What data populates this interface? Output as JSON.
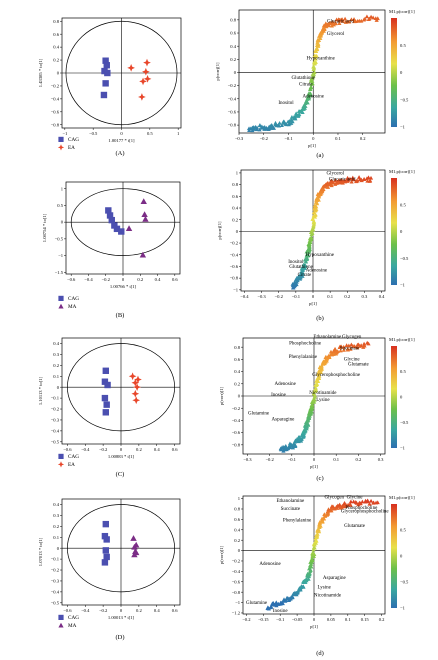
{
  "chart_data": [
    {
      "type": "scatter",
      "kind": "scores",
      "label": "(A)",
      "xlabel": "1.00177 * t[1]",
      "ylabel": "1.43385 * to[1]",
      "xticks": [
        -1,
        -0.5,
        0,
        0.5,
        1
      ],
      "yticks": [
        0.8,
        0.6,
        0.4,
        0.2,
        0,
        -0.2,
        -0.4,
        -0.6,
        -0.8
      ],
      "xlim": [
        -1.05,
        1.05
      ],
      "ylim": [
        -0.85,
        0.85
      ],
      "ellipse": {
        "rx": 0.98,
        "ry": 0.8
      },
      "series": [
        {
          "name": "CAG",
          "marker": "square",
          "color": "#4b4fb0",
          "points": [
            [
              -0.28,
              0.19
            ],
            [
              -0.26,
              0.12
            ],
            [
              -0.3,
              0.03
            ],
            [
              -0.25,
              0.0
            ],
            [
              -0.28,
              -0.16
            ],
            [
              -0.31,
              -0.34
            ]
          ]
        },
        {
          "name": "EA",
          "marker": "cross4",
          "color": "#e8462a",
          "points": [
            [
              0.17,
              0.08
            ],
            [
              0.45,
              0.16
            ],
            [
              0.43,
              0.02
            ],
            [
              0.46,
              -0.09
            ],
            [
              0.38,
              -0.13
            ],
            [
              0.36,
              -0.37
            ]
          ]
        }
      ]
    },
    {
      "type": "scatter",
      "kind": "splot",
      "label": "(a)",
      "xlabel": "p[1]",
      "ylabel": "p(corr)[1]",
      "xticks": [
        -0.3,
        -0.2,
        -0.1,
        0,
        0.1,
        0.2
      ],
      "yticks": [
        0.8,
        0.6,
        0.4,
        0.2,
        0,
        -0.2,
        -0.4,
        -0.6,
        -0.8
      ],
      "xlim": [
        -0.3,
        0.29
      ],
      "ylim": [
        -0.92,
        0.95
      ],
      "curve": [
        [
          -0.26,
          -0.85
        ],
        [
          -0.18,
          -0.83
        ],
        [
          -0.1,
          -0.76
        ],
        [
          -0.05,
          -0.6
        ],
        [
          -0.015,
          -0.35
        ],
        [
          0.005,
          0.1
        ],
        [
          0.02,
          0.5
        ],
        [
          0.05,
          0.72
        ],
        [
          0.12,
          0.8
        ],
        [
          0.27,
          0.83
        ]
      ],
      "colorbar": {
        "title": "M1.p(corr)[1]",
        "ticks": [
          0.5,
          0,
          -0.5,
          -1
        ]
      },
      "annotations": [
        {
          "text": "Glucaric acid",
          "x": 0.11,
          "y": 0.76
        },
        {
          "text": "Glycerol",
          "x": 0.09,
          "y": 0.57
        },
        {
          "text": "Hypoxanthine",
          "x": 0.03,
          "y": 0.2
        },
        {
          "text": "Glutathione",
          "x": -0.04,
          "y": -0.1
        },
        {
          "text": "Citrate",
          "x": -0.03,
          "y": -0.2
        },
        {
          "text": "Adenosine",
          "x": 0.0,
          "y": -0.38
        },
        {
          "text": "Inositol",
          "x": -0.11,
          "y": -0.48
        }
      ]
    },
    {
      "type": "scatter",
      "kind": "scores",
      "label": "(B)",
      "xlabel": "1.00766 * t[1]",
      "ylabel": "1.08754 * to[1]",
      "xticks": [
        -0.6,
        -0.4,
        -0.2,
        0,
        0.2,
        0.4,
        0.6
      ],
      "yticks": [
        1,
        0.5,
        0,
        -0.5,
        -1,
        -1.5
      ],
      "xlim": [
        -0.66,
        0.66
      ],
      "ylim": [
        -1.55,
        1.2
      ],
      "ellipse": {
        "rx": 0.6,
        "ry": 1.0
      },
      "series": [
        {
          "name": "CAG",
          "marker": "square",
          "color": "#4b4fb0",
          "points": [
            [
              -0.17,
              0.35
            ],
            [
              -0.15,
              0.2
            ],
            [
              -0.13,
              0.06
            ],
            [
              -0.1,
              -0.1
            ],
            [
              -0.07,
              -0.2
            ],
            [
              -0.02,
              -0.28
            ]
          ]
        },
        {
          "name": "MA",
          "marker": "triangle",
          "color": "#7b2d86",
          "points": [
            [
              0.24,
              0.62
            ],
            [
              0.25,
              0.23
            ],
            [
              0.26,
              0.09
            ],
            [
              0.07,
              -0.19
            ],
            [
              0.23,
              -0.98
            ]
          ]
        }
      ]
    },
    {
      "type": "scatter",
      "kind": "splot",
      "label": "(b)",
      "xlabel": "p[1]",
      "ylabel": "p(corr)[1]",
      "xticks": [
        -0.4,
        -0.3,
        -0.2,
        -0.1,
        0,
        0.1,
        0.2,
        0.3,
        0.4
      ],
      "yticks": [
        1,
        0.8,
        0.6,
        0.4,
        0.2,
        0,
        -0.2,
        -0.4,
        -0.6,
        -0.8,
        -1
      ],
      "xlim": [
        -0.42,
        0.42
      ],
      "ylim": [
        -1.02,
        1.05
      ],
      "curve": [
        [
          -0.12,
          -0.95
        ],
        [
          -0.07,
          -0.75
        ],
        [
          -0.04,
          -0.5
        ],
        [
          -0.02,
          -0.25
        ],
        [
          0.0,
          0.1
        ],
        [
          0.02,
          0.5
        ],
        [
          0.05,
          0.72
        ],
        [
          0.1,
          0.82
        ],
        [
          0.2,
          0.88
        ],
        [
          0.35,
          0.9
        ]
      ],
      "colorbar": {
        "title": "M1.p(corr)[1]",
        "ticks": [
          0.5,
          0,
          -0.5,
          -1
        ]
      },
      "annotations": [
        {
          "text": "Glycerol",
          "x": 0.13,
          "y": 0.97
        },
        {
          "text": "Glucaric acid",
          "x": 0.17,
          "y": 0.87
        },
        {
          "text": "Hypoxanthine",
          "x": 0.04,
          "y": -0.42
        },
        {
          "text": "Inositol",
          "x": -0.1,
          "y": -0.54
        },
        {
          "text": "Glutathione",
          "x": -0.07,
          "y": -0.63
        },
        {
          "text": "Adenosine",
          "x": 0.02,
          "y": -0.69
        },
        {
          "text": "Citrate",
          "x": -0.05,
          "y": -0.76
        }
      ]
    },
    {
      "type": "scatter",
      "kind": "scores",
      "label": "(C)",
      "xlabel": "1.00883 * t[1]",
      "ylabel": "1.10113 * to[1]",
      "xticks": [
        -0.6,
        -0.4,
        -0.2,
        0,
        0.2,
        0.4,
        0.6
      ],
      "yticks": [
        0.4,
        0.3,
        0.2,
        0.1,
        0,
        -0.1,
        -0.2,
        -0.3,
        -0.4,
        -0.5
      ],
      "xlim": [
        -0.66,
        0.66
      ],
      "ylim": [
        -0.52,
        0.45
      ],
      "ellipse": {
        "rx": 0.6,
        "ry": 0.4
      },
      "series": [
        {
          "name": "CAG",
          "marker": "square",
          "color": "#4b4fb0",
          "points": [
            [
              -0.17,
              0.15
            ],
            [
              -0.18,
              0.05
            ],
            [
              -0.15,
              0.02
            ],
            [
              -0.18,
              -0.1
            ],
            [
              -0.16,
              -0.16
            ],
            [
              -0.17,
              -0.23
            ]
          ]
        },
        {
          "name": "EA",
          "marker": "cross4",
          "color": "#e8462a",
          "points": [
            [
              0.13,
              0.1
            ],
            [
              0.19,
              0.07
            ],
            [
              0.16,
              0.04
            ],
            [
              0.18,
              0.0
            ],
            [
              0.16,
              -0.06
            ],
            [
              0.17,
              -0.12
            ]
          ]
        }
      ]
    },
    {
      "type": "scatter",
      "kind": "splot",
      "label": "(c)",
      "xlabel": "p[1]",
      "ylabel": "p(corr)[1]",
      "xticks": [
        -0.3,
        -0.2,
        -0.1,
        0,
        0.1,
        0.2,
        0.3
      ],
      "yticks": [
        0.8,
        0.6,
        0.4,
        0.2,
        0,
        -0.2,
        -0.4,
        -0.6,
        -0.8
      ],
      "xlim": [
        -0.32,
        0.32
      ],
      "ylim": [
        -0.95,
        0.95
      ],
      "curve": [
        [
          -0.15,
          -0.88
        ],
        [
          -0.09,
          -0.8
        ],
        [
          -0.05,
          -0.65
        ],
        [
          -0.03,
          -0.45
        ],
        [
          -0.01,
          -0.2
        ],
        [
          0.01,
          0.15
        ],
        [
          0.03,
          0.45
        ],
        [
          0.06,
          0.65
        ],
        [
          0.12,
          0.78
        ],
        [
          0.25,
          0.85
        ]
      ],
      "colorbar": {
        "title": "M1.p(corr)[1]",
        "ticks": [
          0.5,
          0,
          -0.5,
          -1
        ]
      },
      "annotations": [
        {
          "text": "Ethanolamine",
          "x": 0.06,
          "y": 0.95
        },
        {
          "text": "Glycogen",
          "x": 0.17,
          "y": 0.95
        },
        {
          "text": "Phosphocholine",
          "x": -0.04,
          "y": 0.84
        },
        {
          "text": "Succinate",
          "x": 0.16,
          "y": 0.76
        },
        {
          "text": "Phenylalanine",
          "x": -0.05,
          "y": 0.62
        },
        {
          "text": "Glycine",
          "x": 0.17,
          "y": 0.58
        },
        {
          "text": "Glutamate",
          "x": 0.2,
          "y": 0.5
        },
        {
          "text": "Glycerophosphocholine",
          "x": 0.1,
          "y": 0.33
        },
        {
          "text": "Adenosine",
          "x": -0.13,
          "y": 0.18
        },
        {
          "text": "Nicotinamide",
          "x": 0.04,
          "y": 0.03
        },
        {
          "text": "Inosine",
          "x": -0.16,
          "y": 0.0
        },
        {
          "text": "Lysine",
          "x": 0.04,
          "y": -0.08
        },
        {
          "text": "Glutamine",
          "x": -0.25,
          "y": -0.3
        },
        {
          "text": "Asparagine",
          "x": -0.14,
          "y": -0.4
        }
      ]
    },
    {
      "type": "scatter",
      "kind": "scores",
      "label": "(D)",
      "xlabel": "1.00013 * t[1]",
      "ylabel": "1.07013 * to[1]",
      "xticks": [
        -0.6,
        -0.4,
        -0.2,
        0,
        0.2,
        0.4,
        0.6
      ],
      "yticks": [
        0.4,
        0.3,
        0.2,
        0.1,
        0,
        -0.1,
        -0.2,
        -0.3,
        -0.4,
        -0.5
      ],
      "xlim": [
        -0.66,
        0.66
      ],
      "ylim": [
        -0.52,
        0.45
      ],
      "ellipse": {
        "rx": 0.6,
        "ry": 0.4
      },
      "series": [
        {
          "name": "CAG",
          "marker": "square",
          "color": "#4b4fb0",
          "points": [
            [
              -0.17,
              0.22
            ],
            [
              -0.18,
              0.11
            ],
            [
              -0.16,
              0.08
            ],
            [
              -0.17,
              -0.02
            ],
            [
              -0.16,
              -0.08
            ],
            [
              -0.18,
              -0.13
            ]
          ]
        },
        {
          "name": "MA",
          "marker": "triangle",
          "color": "#7b2d86",
          "points": [
            [
              0.14,
              0.09
            ],
            [
              0.17,
              0.03
            ],
            [
              0.15,
              0.01
            ],
            [
              0.16,
              -0.03
            ],
            [
              0.15,
              -0.06
            ],
            [
              0.17,
              -0.04
            ]
          ]
        }
      ]
    },
    {
      "type": "scatter",
      "kind": "splot",
      "label": "(d)",
      "xlabel": "p[1]",
      "ylabel": "p(corr)[1]",
      "xticks": [
        -0.2,
        -0.15,
        -0.1,
        -0.05,
        0,
        0.05,
        0.1,
        0.15,
        0.2
      ],
      "ytickLabels": [
        "1",
        "0.8",
        "0.6",
        "0.4",
        "0.2",
        "0",
        "−0.2",
        "−0.4",
        "−0.6",
        "−0.8",
        "−1",
        "−1.2"
      ],
      "yticks": [
        1,
        0.8,
        0.6,
        0.4,
        0.2,
        0,
        -0.2,
        -0.4,
        -0.6,
        -0.8,
        -1,
        -1.2
      ],
      "xlim": [
        -0.21,
        0.21
      ],
      "ylim": [
        -1.22,
        1.05
      ],
      "curve": [
        [
          -0.14,
          -1.1
        ],
        [
          -0.09,
          -0.98
        ],
        [
          -0.05,
          -0.82
        ],
        [
          -0.02,
          -0.55
        ],
        [
          -0.005,
          -0.2
        ],
        [
          0.005,
          0.2
        ],
        [
          0.02,
          0.55
        ],
        [
          0.05,
          0.8
        ],
        [
          0.1,
          0.9
        ],
        [
          0.19,
          0.95
        ]
      ],
      "colorbar": {
        "title": "M1.p(corr)[1]",
        "ticks": [
          0.5,
          0,
          -0.5,
          -1
        ]
      },
      "annotations": [
        {
          "text": "Glycogen",
          "x": 0.06,
          "y": 1.0
        },
        {
          "text": "Glycine",
          "x": 0.12,
          "y": 1.0
        },
        {
          "text": "Ethanolamine",
          "x": -0.07,
          "y": 0.93
        },
        {
          "text": "Phosphocholine",
          "x": 0.14,
          "y": 0.8
        },
        {
          "text": "Glycerophosphocholine",
          "x": 0.15,
          "y": 0.73
        },
        {
          "text": "Succinate",
          "x": -0.07,
          "y": 0.78
        },
        {
          "text": "Phenylalanine",
          "x": -0.05,
          "y": 0.56
        },
        {
          "text": "Glutamate",
          "x": 0.12,
          "y": 0.45
        },
        {
          "text": "Adenosine",
          "x": -0.13,
          "y": -0.28
        },
        {
          "text": "Asparagine",
          "x": 0.06,
          "y": -0.55
        },
        {
          "text": "Lysine",
          "x": 0.03,
          "y": -0.73
        },
        {
          "text": "Nicotinamide",
          "x": 0.04,
          "y": -0.88
        },
        {
          "text": "Glutamine",
          "x": -0.17,
          "y": -1.03
        },
        {
          "text": "Inosine",
          "x": -0.1,
          "y": -1.18
        }
      ]
    }
  ]
}
